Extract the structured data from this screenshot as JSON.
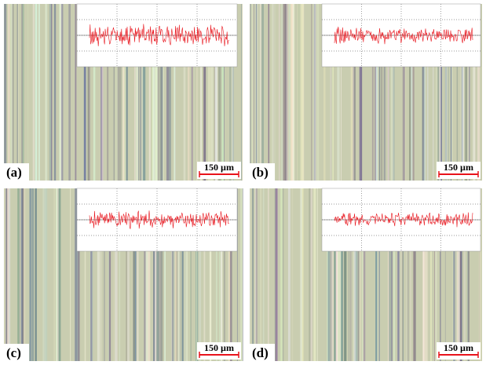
{
  "panels": [
    {
      "label": "(a)",
      "scale_bar": "150 µm"
    },
    {
      "label": "(b)",
      "scale_bar": "150 µm"
    },
    {
      "label": "(c)",
      "scale_bar": "150 µm"
    },
    {
      "label": "(d)",
      "scale_bar": "150 µm"
    }
  ]
}
